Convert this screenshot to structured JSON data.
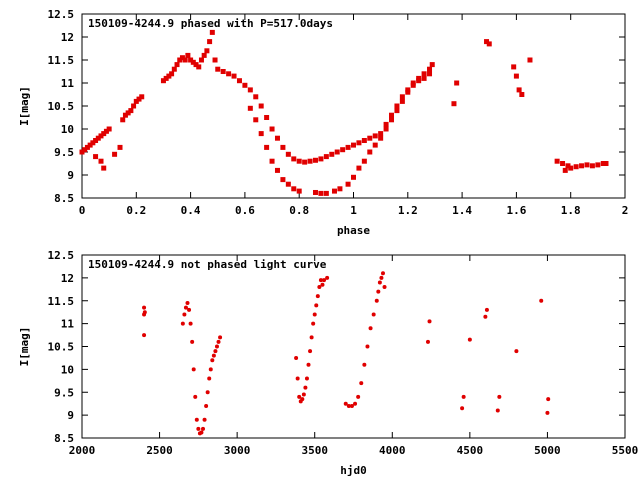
{
  "colors": {
    "points": "#e00000",
    "axes": "#000000",
    "background": "#ffffff"
  },
  "chart_data": [
    {
      "type": "scatter",
      "title": "150109-4244.9 phased with P=517.0days",
      "xlabel": "phase",
      "ylabel": "I[mag]",
      "xlim": [
        0,
        2
      ],
      "ylim": [
        12.5,
        8.5
      ],
      "y_inverted": true,
      "grid": false,
      "xticks": [
        "0",
        "0.2",
        "0.4",
        "0.6",
        "0.8",
        "1",
        "1.2",
        "1.4",
        "1.6",
        "1.8",
        "2"
      ],
      "yticks": [
        "8.5",
        "9",
        "9.5",
        "10",
        "10.5",
        "11",
        "11.5",
        "12",
        "12.5"
      ],
      "x": [
        0.0,
        0.01,
        0.02,
        0.03,
        0.04,
        0.05,
        0.06,
        0.07,
        0.08,
        0.09,
        0.1,
        0.05,
        0.07,
        0.08,
        0.12,
        0.14,
        0.15,
        0.16,
        0.17,
        0.18,
        0.19,
        0.2,
        0.21,
        0.22,
        0.3,
        0.31,
        0.32,
        0.33,
        0.34,
        0.35,
        0.36,
        0.37,
        0.38,
        0.39,
        0.4,
        0.41,
        0.42,
        0.43,
        0.44,
        0.45,
        0.46,
        0.47,
        0.48,
        0.49,
        0.5,
        0.52,
        0.54,
        0.56,
        0.58,
        0.6,
        0.62,
        0.64,
        0.66,
        0.68,
        0.7,
        0.72,
        0.74,
        0.76,
        0.78,
        0.8,
        0.82,
        0.84,
        0.86,
        0.88,
        0.9,
        0.92,
        0.94,
        0.96,
        0.98,
        1.0,
        1.02,
        1.04,
        1.06,
        1.08,
        1.1,
        1.12,
        1.14,
        1.16,
        1.18,
        1.2,
        1.22,
        1.24,
        1.26,
        1.28,
        0.62,
        0.64,
        0.66,
        0.68,
        0.7,
        0.72,
        0.74,
        0.76,
        0.78,
        0.8,
        0.86,
        0.88,
        0.9,
        0.93,
        0.95,
        0.98,
        1.0,
        1.02,
        1.04,
        1.06,
        1.08,
        1.1,
        1.12,
        1.14,
        1.16,
        1.18,
        1.2,
        1.22,
        1.24,
        1.26,
        1.28,
        1.29,
        1.37,
        1.38,
        1.49,
        1.5,
        1.59,
        1.6,
        1.61,
        1.62,
        1.65,
        1.75,
        1.77,
        1.78,
        1.79,
        1.8,
        1.82,
        1.84,
        1.86,
        1.88,
        1.9,
        1.92,
        1.93
      ],
      "y": [
        9.5,
        9.55,
        9.6,
        9.65,
        9.7,
        9.75,
        9.8,
        9.85,
        9.9,
        9.95,
        10.0,
        9.4,
        9.3,
        9.15,
        9.45,
        9.6,
        10.2,
        10.3,
        10.35,
        10.4,
        10.5,
        10.6,
        10.65,
        10.7,
        11.05,
        11.1,
        11.15,
        11.2,
        11.3,
        11.4,
        11.5,
        11.55,
        11.5,
        11.6,
        11.5,
        11.45,
        11.4,
        11.35,
        11.5,
        11.6,
        11.7,
        11.9,
        12.1,
        11.5,
        11.3,
        11.25,
        11.2,
        11.15,
        11.05,
        10.95,
        10.85,
        10.7,
        10.5,
        10.25,
        10.0,
        9.8,
        9.6,
        9.45,
        9.35,
        9.3,
        9.28,
        9.3,
        9.32,
        9.35,
        9.4,
        9.45,
        9.5,
        9.55,
        9.6,
        9.65,
        9.7,
        9.75,
        9.8,
        9.85,
        9.9,
        10.1,
        10.3,
        10.5,
        10.7,
        10.85,
        10.95,
        11.05,
        11.1,
        11.2,
        10.45,
        10.2,
        9.9,
        9.6,
        9.3,
        9.1,
        8.9,
        8.8,
        8.7,
        8.65,
        8.62,
        8.6,
        8.6,
        8.65,
        8.7,
        8.8,
        8.95,
        9.15,
        9.3,
        9.5,
        9.65,
        9.8,
        10.0,
        10.2,
        10.4,
        10.6,
        10.8,
        11.0,
        11.1,
        11.2,
        11.3,
        11.4,
        10.55,
        11.0,
        11.9,
        11.85,
        11.35,
        11.15,
        10.85,
        10.75,
        11.5,
        9.3,
        9.25,
        9.1,
        9.2,
        9.15,
        9.18,
        9.2,
        9.22,
        9.2,
        9.22,
        9.25,
        9.25
      ]
    },
    {
      "type": "scatter",
      "title": "150109-4244.9 not phased light curve",
      "xlabel": "hjd0",
      "ylabel": "I[mag]",
      "xlim": [
        2000,
        5500
      ],
      "ylim": [
        12.5,
        8.5
      ],
      "y_inverted": true,
      "grid": false,
      "xticks": [
        "2000",
        "2500",
        "3000",
        "3500",
        "4000",
        "4500",
        "5000",
        "5500"
      ],
      "yticks": [
        "8.5",
        "9",
        "9.5",
        "10",
        "10.5",
        "11",
        "11.5",
        "12",
        "12.5"
      ],
      "x": [
        2400,
        2400,
        2405,
        2400,
        2650,
        2660,
        2670,
        2680,
        2690,
        2700,
        2710,
        2720,
        2730,
        2740,
        2750,
        2760,
        2770,
        2780,
        2790,
        2800,
        2810,
        2820,
        2830,
        2840,
        2850,
        2860,
        2870,
        2880,
        2890,
        3380,
        3390,
        3400,
        3410,
        3420,
        3430,
        3440,
        3450,
        3460,
        3470,
        3480,
        3490,
        3500,
        3510,
        3520,
        3530,
        3540,
        3550,
        3560,
        3580,
        3700,
        3720,
        3740,
        3760,
        3780,
        3800,
        3820,
        3840,
        3860,
        3880,
        3900,
        3910,
        3920,
        3930,
        3940,
        3950,
        4230,
        4240,
        4450,
        4460,
        4500,
        4600,
        4610,
        4680,
        4690,
        4800,
        4960,
        5000,
        5005
      ],
      "y": [
        10.75,
        11.2,
        11.25,
        11.35,
        11.0,
        11.2,
        11.35,
        11.45,
        11.3,
        11.0,
        10.6,
        10.0,
        9.4,
        8.9,
        8.7,
        8.6,
        8.62,
        8.7,
        8.9,
        9.2,
        9.5,
        9.8,
        10.0,
        10.2,
        10.3,
        10.4,
        10.5,
        10.6,
        10.7,
        10.25,
        9.8,
        9.4,
        9.3,
        9.35,
        9.45,
        9.6,
        9.8,
        10.1,
        10.4,
        10.7,
        11.0,
        11.2,
        11.4,
        11.6,
        11.8,
        11.95,
        11.85,
        11.95,
        12.0,
        9.25,
        9.2,
        9.2,
        9.25,
        9.4,
        9.7,
        10.1,
        10.5,
        10.9,
        11.2,
        11.5,
        11.7,
        11.9,
        12.0,
        12.1,
        11.8,
        10.6,
        11.05,
        9.15,
        9.4,
        10.65,
        11.15,
        11.3,
        9.1,
        9.4,
        10.4,
        11.5,
        9.05,
        9.35
      ]
    }
  ]
}
